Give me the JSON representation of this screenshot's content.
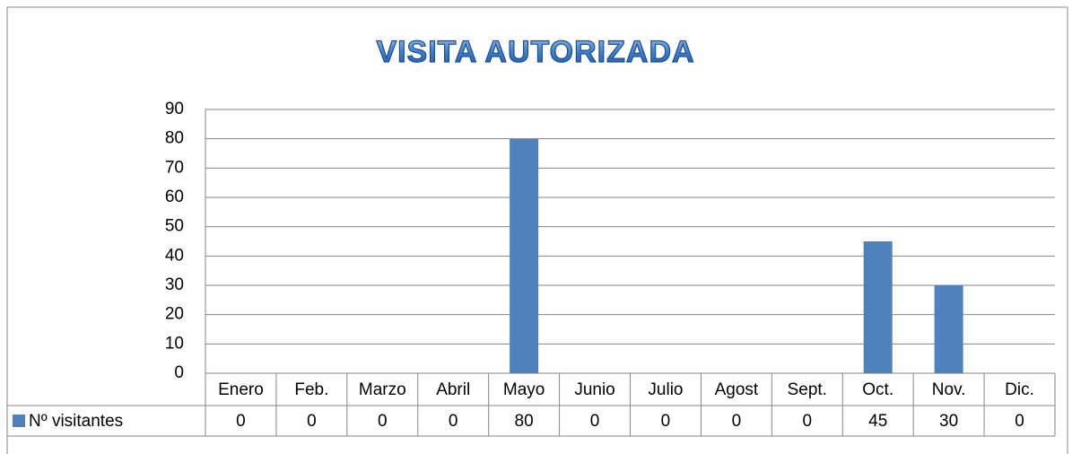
{
  "chart_data": {
    "type": "bar",
    "title": "VISITA AUTORIZADA",
    "categories": [
      "Enero",
      "Feb.",
      "Marzo",
      "Abril",
      "Mayo",
      "Junio",
      "Julio",
      "Agost",
      "Sept.",
      "Oct.",
      "Nov.",
      "Dic."
    ],
    "series": [
      {
        "name": "Nº visitantes",
        "color": "#4f81bd",
        "values": [
          0,
          0,
          0,
          0,
          80,
          0,
          0,
          0,
          0,
          45,
          30,
          0
        ]
      }
    ],
    "ylim": [
      0,
      90
    ],
    "yticks": [
      0,
      10,
      20,
      30,
      40,
      50,
      60,
      70,
      80,
      90
    ],
    "grid": true,
    "data_table": true
  }
}
